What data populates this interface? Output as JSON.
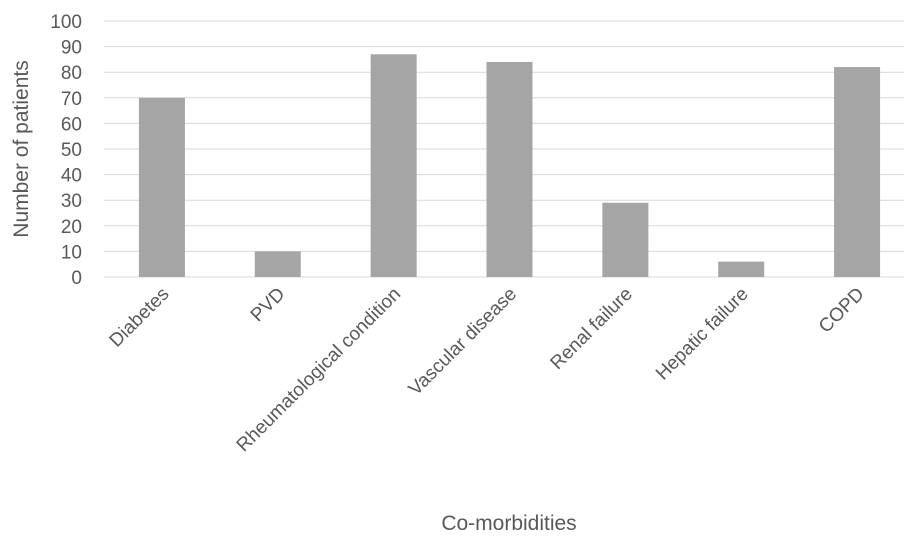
{
  "chart_data": {
    "type": "bar",
    "title": "",
    "xlabel": "Co-morbidities",
    "ylabel": "Number of patients",
    "categories": [
      "Diabetes",
      "PVD",
      "Rheumatological condition",
      "Vascular disease",
      "Renal failure",
      "Hepatic failure",
      "COPD"
    ],
    "values": [
      70,
      10,
      87,
      84,
      29,
      6,
      82
    ],
    "ylim": [
      0,
      100
    ],
    "yticks": [
      "0",
      "10",
      "20",
      "30",
      "40",
      "50",
      "60",
      "70",
      "80",
      "90",
      "100"
    ],
    "grid": true,
    "legend": "none",
    "bar_color": "#a5a5a5"
  }
}
